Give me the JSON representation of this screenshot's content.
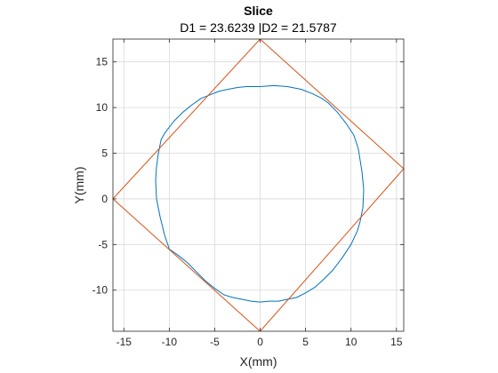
{
  "chart_data": {
    "type": "line",
    "title": "Slice",
    "subtitle": "D1 = 23.6239 |D2 = 21.5787",
    "xlabel": "X(mm)",
    "ylabel": "Y(mm)",
    "xlim": [
      -16.2,
      15.8
    ],
    "ylim": [
      -14.5,
      17.5
    ],
    "xticks": [
      -15,
      -10,
      -5,
      0,
      5,
      10,
      15
    ],
    "yticks": [
      -10,
      -5,
      0,
      5,
      10,
      15
    ],
    "grid": true,
    "colors": {
      "contour": "#0072BD",
      "bounding": "#D95319"
    },
    "series": [
      {
        "role": "contour",
        "closed": true,
        "x": [
          0.0,
          1.5,
          3.0,
          4.5,
          5.8,
          6.8,
          7.5,
          8.5,
          9.5,
          10.3,
          10.8,
          11.2,
          11.4,
          11.3,
          11.0,
          10.7,
          10.0,
          9.0,
          8.0,
          7.0,
          6.0,
          5.0,
          4.0,
          3.0,
          2.0,
          1.0,
          0.0,
          -1.0,
          -2.0,
          -3.0,
          -4.0,
          -5.0,
          -6.0,
          -7.0,
          -8.0,
          -9.0,
          -10.0,
          -10.5,
          -11.0,
          -11.4,
          -11.5,
          -11.4,
          -11.2,
          -10.9,
          -10.5,
          -9.5,
          -8.5,
          -7.5,
          -6.5,
          -5.5,
          -4.5,
          -3.5,
          -2.5,
          -1.5,
          -0.5
        ],
        "y": [
          12.3,
          12.4,
          12.3,
          12.0,
          11.5,
          11.0,
          10.5,
          9.5,
          8.2,
          7.0,
          5.5,
          3.0,
          1.0,
          -1.0,
          -2.5,
          -3.5,
          -5.0,
          -6.5,
          -7.8,
          -8.8,
          -9.7,
          -10.3,
          -10.8,
          -11.0,
          -11.2,
          -11.2,
          -11.3,
          -11.2,
          -11.0,
          -10.8,
          -10.5,
          -9.8,
          -9.0,
          -8.0,
          -7.0,
          -6.2,
          -5.5,
          -4.0,
          -2.0,
          0.0,
          2.0,
          3.5,
          5.0,
          6.5,
          7.2,
          8.5,
          9.5,
          10.3,
          11.0,
          11.4,
          11.8,
          12.0,
          12.2,
          12.3,
          12.3
        ]
      },
      {
        "role": "bounding",
        "closed": true,
        "x": [
          0.0,
          15.8,
          0.0,
          -16.2
        ],
        "y": [
          17.5,
          3.3,
          -14.5,
          0.0
        ]
      }
    ]
  }
}
